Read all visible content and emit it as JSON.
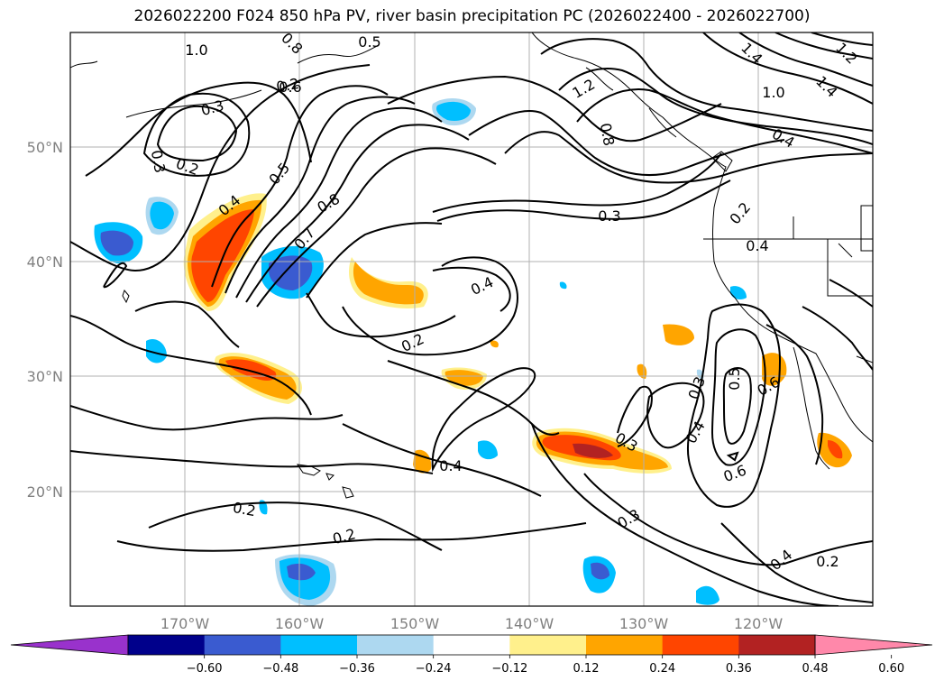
{
  "title": "2026022200 F024 850 hPa PV, river basin precipitation PC (2026022400 - 2026022700)",
  "lat_labels": [
    "50°N",
    "40°N",
    "30°N",
    "20°N"
  ],
  "lon_labels": [
    "170°W",
    "160°W",
    "150°W",
    "140°W",
    "130°W",
    "120°W"
  ],
  "contour_labels": [
    "1.0",
    "0.8",
    "0.5",
    "0.6",
    "0.3",
    "0.2",
    "0.4",
    "0.5",
    "0.7",
    "0.8",
    "0.3",
    "0.4",
    "0.2",
    "1.2",
    "0.8",
    "1.4",
    "1.2",
    "1.4",
    "1.0",
    "0.4",
    "0.2",
    "0.3",
    "0.5",
    "0.6",
    "0.4",
    "0.6",
    "0.3",
    "0.2",
    "0.4",
    "0.2",
    "0.4",
    "0.3",
    "0.2",
    "0.2",
    "0.3",
    "0.4"
  ],
  "colorbar": {
    "ticks": [
      "−0.60",
      "−0.48",
      "−0.36",
      "−0.24",
      "−0.12",
      "0.12",
      "0.24",
      "0.36",
      "0.48",
      "0.60"
    ],
    "colors": [
      "#9932cc",
      "#00008b",
      "#3a5bd0",
      "#00bfff",
      "#add8f0",
      "#ffffff",
      "#fff08c",
      "#ffa500",
      "#ff4500",
      "#b22222",
      "#ff88aa"
    ]
  },
  "colors": {
    "orange": "#ffa500",
    "red": "#ff4500",
    "darkred": "#b22222",
    "yellow": "#fff08c",
    "cyan": "#00bfff",
    "lightblue": "#add8f0",
    "blue": "#3a5bd0",
    "grid": "#b0b0b0"
  }
}
